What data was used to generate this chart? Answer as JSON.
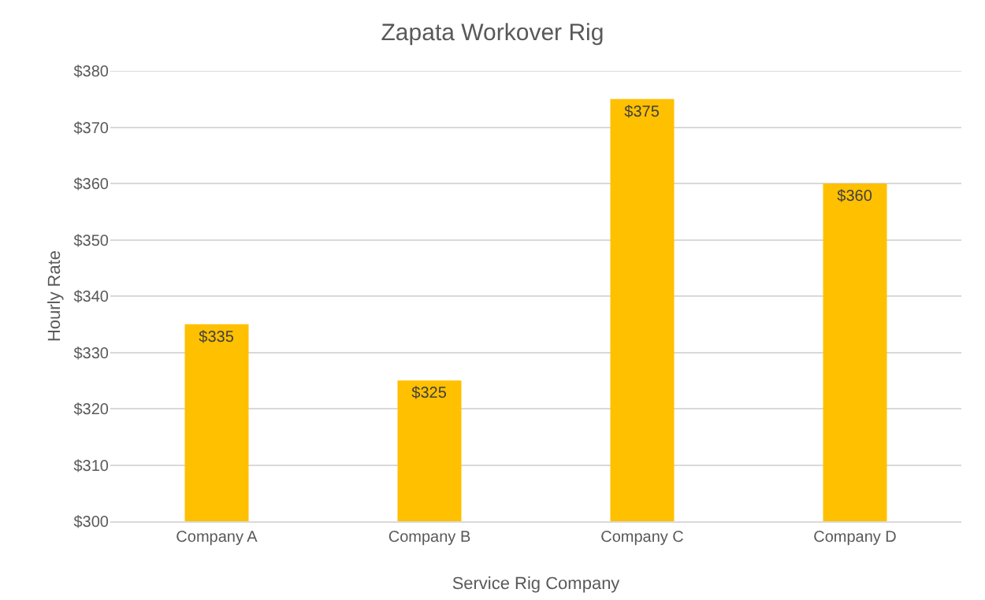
{
  "chart_data": {
    "type": "bar",
    "title": "Zapata Workover Rig",
    "xlabel": "Service Rig Company",
    "ylabel": "Hourly Rate",
    "categories": [
      "Company A",
      "Company B",
      "Company C",
      "Company D"
    ],
    "values": [
      335,
      325,
      375,
      360
    ],
    "value_labels": [
      "$335",
      "$325",
      "$375",
      "$360"
    ],
    "color": "#ffc000",
    "ylim": [
      300,
      380
    ],
    "yticks": [
      {
        "value": 300,
        "label": "$300"
      },
      {
        "value": 310,
        "label": "$310"
      },
      {
        "value": 320,
        "label": "$320"
      },
      {
        "value": 330,
        "label": "$330"
      },
      {
        "value": 340,
        "label": "$340"
      },
      {
        "value": 350,
        "label": "$350"
      },
      {
        "value": 360,
        "label": "$360"
      },
      {
        "value": 370,
        "label": "$370"
      },
      {
        "value": 380,
        "label": "$380"
      }
    ],
    "grid": "y"
  }
}
